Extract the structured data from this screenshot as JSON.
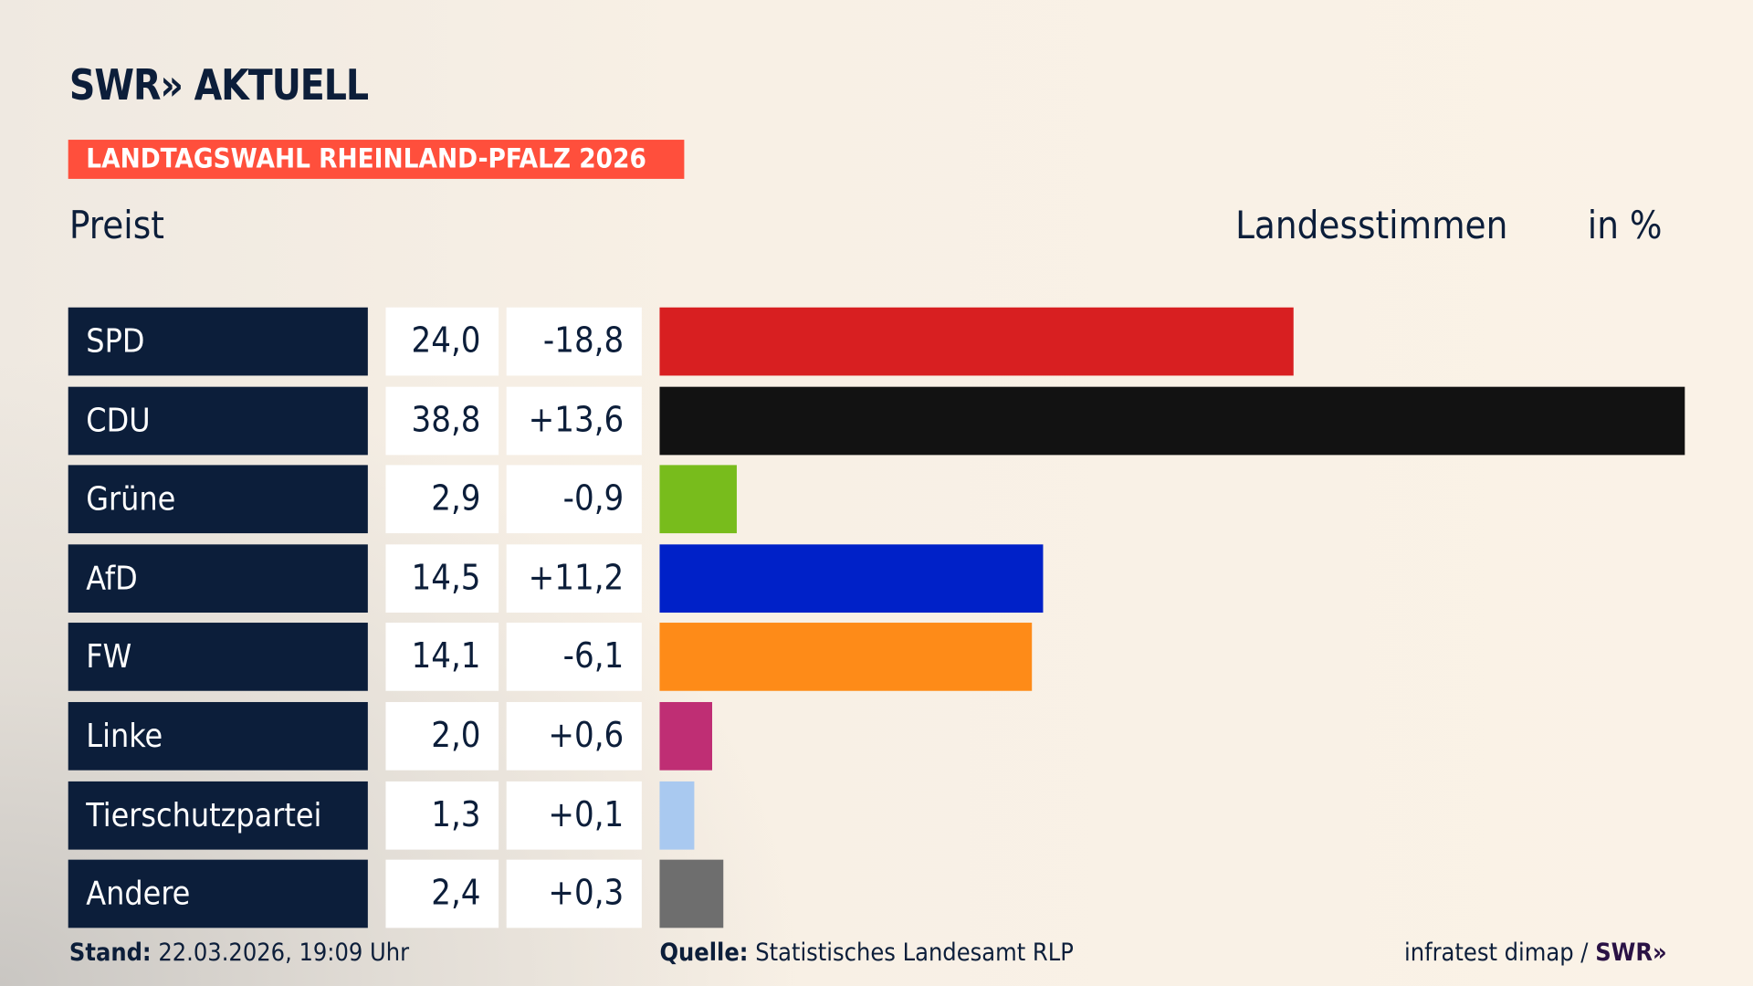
{
  "header": {
    "logo": "SWR» AKTUELL",
    "badge": "LANDTAGSWAHL RHEINLAND-PFALZ 2026",
    "subtitle": "Preist",
    "measure": "Landesstimmen",
    "unit": "in %"
  },
  "chart_data": {
    "type": "bar",
    "orientation": "horizontal",
    "xlim": [
      0,
      38.8
    ],
    "categories": [
      "SPD",
      "CDU",
      "Grüne",
      "AfD",
      "FW",
      "Linke",
      "Tierschutzpartei",
      "Andere"
    ],
    "values": [
      "24,0",
      "38,8",
      "2,9",
      "14,5",
      "14,1",
      "2,0",
      "1,3",
      "2,4"
    ],
    "numeric_values": [
      24.0,
      38.8,
      2.9,
      14.5,
      14.1,
      2.0,
      1.3,
      2.4
    ],
    "changes": [
      "-18,8",
      "+13,6",
      "-0,9",
      "+11,2",
      "-6,1",
      "+0,6",
      "+0,1",
      "+0,3"
    ],
    "colors": [
      "#d81f21",
      "#121212",
      "#78bc1c",
      "#0021c8",
      "#fe8b18",
      "#bf2e74",
      "#a9c9f0",
      "#6e6e6e"
    ]
  },
  "footer": {
    "stand_label": "Stand:",
    "stand": "22.03.2026, 19:09 Uhr",
    "source_label": "Quelle:",
    "source": "Statistisches Landesamt RLP",
    "credit": "infratest dimap /",
    "credit_logo": "SWR»"
  }
}
